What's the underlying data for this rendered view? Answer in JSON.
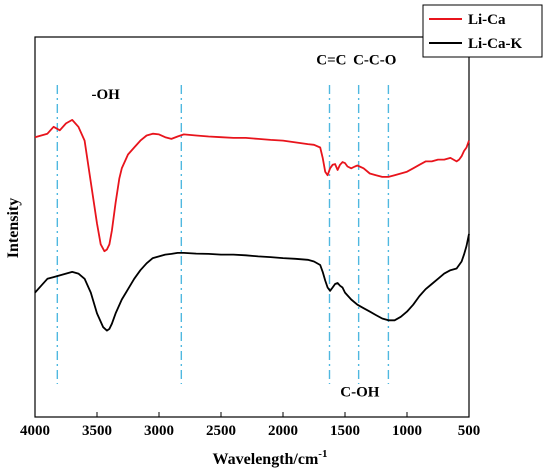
{
  "chart_data": {
    "type": "line",
    "title": "",
    "xlabel": "Wavelength/cm",
    "xlabel_sup": "-1",
    "ylabel": "Intensity",
    "xlim": [
      4000,
      500
    ],
    "x_ticks": [
      4000,
      3500,
      3000,
      2500,
      2000,
      1500,
      1000,
      500
    ],
    "y_ticks_shown": false,
    "grid": false,
    "legend_position": "top-right",
    "colors": {
      "Li-Ca": "#e8141c",
      "Li-Ca-K": "#000000",
      "reference_lines": "#4fb8e0"
    },
    "series": [
      {
        "name": "Li-Ca",
        "x": [
          4000,
          3900,
          3850,
          3800,
          3750,
          3700,
          3650,
          3600,
          3550,
          3500,
          3470,
          3440,
          3420,
          3400,
          3380,
          3350,
          3320,
          3300,
          3250,
          3200,
          3150,
          3100,
          3050,
          3000,
          2950,
          2900,
          2850,
          2800,
          2700,
          2600,
          2500,
          2400,
          2300,
          2200,
          2100,
          2000,
          1900,
          1800,
          1750,
          1700,
          1680,
          1660,
          1640,
          1620,
          1600,
          1580,
          1560,
          1540,
          1520,
          1500,
          1480,
          1450,
          1420,
          1400,
          1350,
          1300,
          1250,
          1200,
          1150,
          1100,
          1050,
          1000,
          950,
          900,
          850,
          800,
          750,
          700,
          650,
          600,
          580,
          560,
          540,
          520,
          500
        ],
        "y": [
          81,
          82,
          84,
          83,
          85,
          86,
          84,
          80,
          68,
          56,
          50,
          48,
          48.5,
          50,
          54,
          62,
          69,
          72,
          76,
          78,
          80,
          81.5,
          82,
          81.8,
          81,
          80.5,
          81.2,
          81.8,
          81.5,
          81.2,
          81,
          80.8,
          80.8,
          80.5,
          80.2,
          80,
          79.5,
          79,
          78.8,
          78,
          75,
          71,
          70,
          72,
          73,
          73.2,
          71.5,
          73,
          73.8,
          73.5,
          72.5,
          72,
          72.5,
          72.8,
          72,
          70.5,
          70,
          69.5,
          69.5,
          70,
          70.5,
          71,
          72,
          73,
          74,
          74,
          74.5,
          74.5,
          75,
          74,
          74.5,
          75.5,
          77,
          78,
          80
        ]
      },
      {
        "name": "Li-Ca-K",
        "x": [
          4000,
          3950,
          3900,
          3850,
          3800,
          3750,
          3700,
          3650,
          3600,
          3550,
          3500,
          3450,
          3420,
          3400,
          3380,
          3350,
          3300,
          3250,
          3200,
          3150,
          3100,
          3050,
          3000,
          2950,
          2900,
          2850,
          2800,
          2700,
          2600,
          2500,
          2400,
          2300,
          2200,
          2100,
          2000,
          1900,
          1800,
          1750,
          1700,
          1680,
          1660,
          1640,
          1620,
          1600,
          1580,
          1560,
          1540,
          1520,
          1500,
          1450,
          1400,
          1350,
          1300,
          1250,
          1200,
          1150,
          1100,
          1050,
          1000,
          950,
          900,
          850,
          800,
          750,
          700,
          650,
          600,
          580,
          560,
          540,
          520,
          500
        ],
        "y": [
          36,
          38,
          40,
          40.5,
          41,
          41.5,
          42,
          41.5,
          40,
          36,
          30,
          26,
          25,
          25.5,
          27,
          30,
          34,
          37,
          40,
          42.5,
          44.5,
          46,
          46.5,
          47,
          47.2,
          47.5,
          47.5,
          47.3,
          47.2,
          47,
          47,
          46.8,
          46.5,
          46.3,
          46,
          45.8,
          45.5,
          45,
          44,
          42,
          39.5,
          37.5,
          36.5,
          37.5,
          38.5,
          38.8,
          38,
          37.5,
          36,
          34,
          32.5,
          31.5,
          30.5,
          29.5,
          28.5,
          28,
          28,
          29,
          30.5,
          32.5,
          35,
          37,
          38.5,
          40,
          41.5,
          42.5,
          43,
          44,
          45,
          47,
          49.5,
          53
        ]
      }
    ],
    "reference_lines": [
      3820,
      2820,
      1625,
      1390,
      1150
    ],
    "annotations": [
      {
        "text": "-OH",
        "x": 3430,
        "y": 92
      },
      {
        "text": "C=C",
        "x": 1610,
        "y": 102
      },
      {
        "text": "C-C-O",
        "x": 1260,
        "y": 102
      },
      {
        "text": "C-OH",
        "x": 1380,
        "y": 6
      }
    ],
    "ylim": [
      0,
      110
    ]
  }
}
